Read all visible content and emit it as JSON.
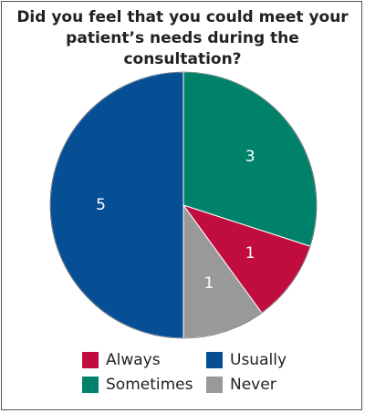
{
  "chart_data": {
    "type": "pie",
    "title": "Did you feel that you could meet your patient’s needs during the consultation?",
    "title_lines": [
      "Did you feel that you could meet your",
      "patient’s needs during the consultation?"
    ],
    "slices": [
      {
        "label": "Sometimes",
        "value": 3,
        "color": "#00826a"
      },
      {
        "label": "Always",
        "value": 1,
        "color": "#c10c3f"
      },
      {
        "label": "Never",
        "value": 1,
        "color": "#999999"
      },
      {
        "label": "Usually",
        "value": 5,
        "color": "#064f94"
      }
    ],
    "legend": [
      {
        "label": "Always",
        "color": "#c10c3f"
      },
      {
        "label": "Usually",
        "color": "#064f94"
      },
      {
        "label": "Sometimes",
        "color": "#00826a"
      },
      {
        "label": "Never",
        "color": "#999999"
      }
    ],
    "legend_placement": "bottom",
    "data_labels": true
  }
}
